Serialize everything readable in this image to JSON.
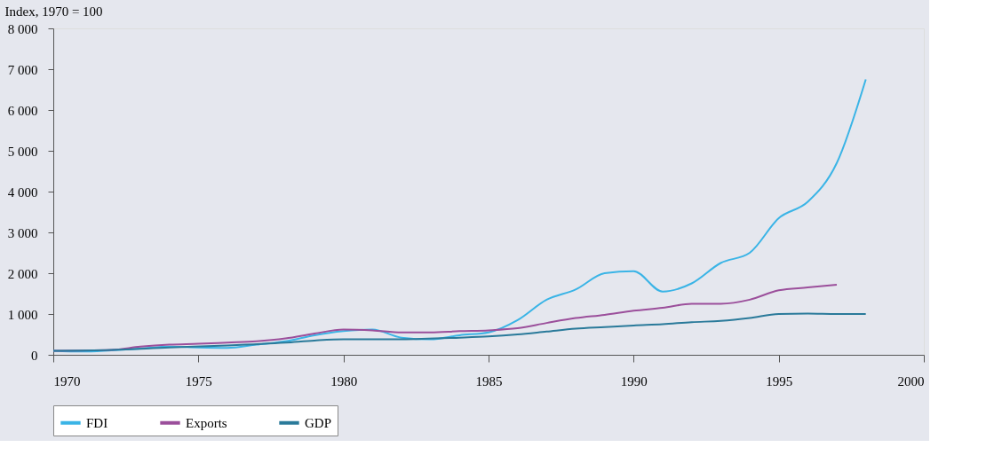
{
  "chart_data": {
    "type": "line",
    "ylabel": "Index, 1970 = 100",
    "xlim": [
      1970,
      2000
    ],
    "xticks": [
      1970,
      1975,
      1980,
      1985,
      1990,
      1995,
      2000
    ],
    "ylim": [
      0,
      8000
    ],
    "yticks": [
      0,
      {
        "value": 1000,
        "label": "1 000"
      },
      {
        "value": 2000,
        "label": "2 000"
      },
      {
        "value": 3000,
        "label": "3 000"
      },
      {
        "value": 4000,
        "label": "4 000"
      },
      {
        "value": 5000,
        "label": "5 000"
      },
      {
        "value": 6000,
        "label": "6 000"
      },
      {
        "value": 7000,
        "label": "7 000"
      },
      {
        "value": 8000,
        "label": "8 000"
      }
    ],
    "grid": false,
    "legend": "bottom",
    "marker": "none",
    "line_style": "solid",
    "series": [
      {
        "name": "FDI",
        "color": "#3ab4e6",
        "x": [
          1970,
          1971,
          1972,
          1973,
          1974,
          1975,
          1976,
          1977,
          1978,
          1979,
          1980,
          1981,
          1982,
          1983,
          1984,
          1985,
          1986,
          1987,
          1988,
          1989,
          1990,
          1991,
          1992,
          1993,
          1994,
          1995,
          1996,
          1997,
          1998
        ],
        "values": [
          100,
          80,
          110,
          150,
          200,
          180,
          170,
          250,
          330,
          480,
          580,
          620,
          420,
          380,
          480,
          550,
          850,
          1350,
          1600,
          2000,
          2050,
          1550,
          1750,
          2250,
          2500,
          3350,
          3750,
          4700,
          6750
        ]
      },
      {
        "name": "Exports",
        "color": "#9b4f9b",
        "x": [
          1970,
          1972,
          1973,
          1974,
          1975,
          1976,
          1977,
          1978,
          1979,
          1980,
          1981,
          1982,
          1983,
          1984,
          1985,
          1986,
          1987,
          1988,
          1989,
          1990,
          1991,
          1992,
          1993,
          1994,
          1995,
          1996,
          1997
        ],
        "values": [
          100,
          120,
          200,
          250,
          270,
          300,
          330,
          400,
          520,
          620,
          600,
          550,
          550,
          580,
          600,
          650,
          780,
          900,
          980,
          1080,
          1150,
          1250,
          1250,
          1350,
          1580,
          1650,
          1720
        ]
      },
      {
        "name": "GDP",
        "color": "#2a7a9a",
        "x": [
          1970,
          1972,
          1974,
          1976,
          1978,
          1979,
          1980,
          1982,
          1984,
          1985,
          1986,
          1987,
          1988,
          1989,
          1990,
          1991,
          1992,
          1993,
          1994,
          1995,
          1996,
          1997,
          1998
        ],
        "values": [
          100,
          120,
          180,
          230,
          300,
          350,
          380,
          380,
          420,
          450,
          500,
          570,
          640,
          680,
          720,
          750,
          800,
          830,
          900,
          1000,
          1010,
          1000,
          1000
        ]
      }
    ]
  }
}
